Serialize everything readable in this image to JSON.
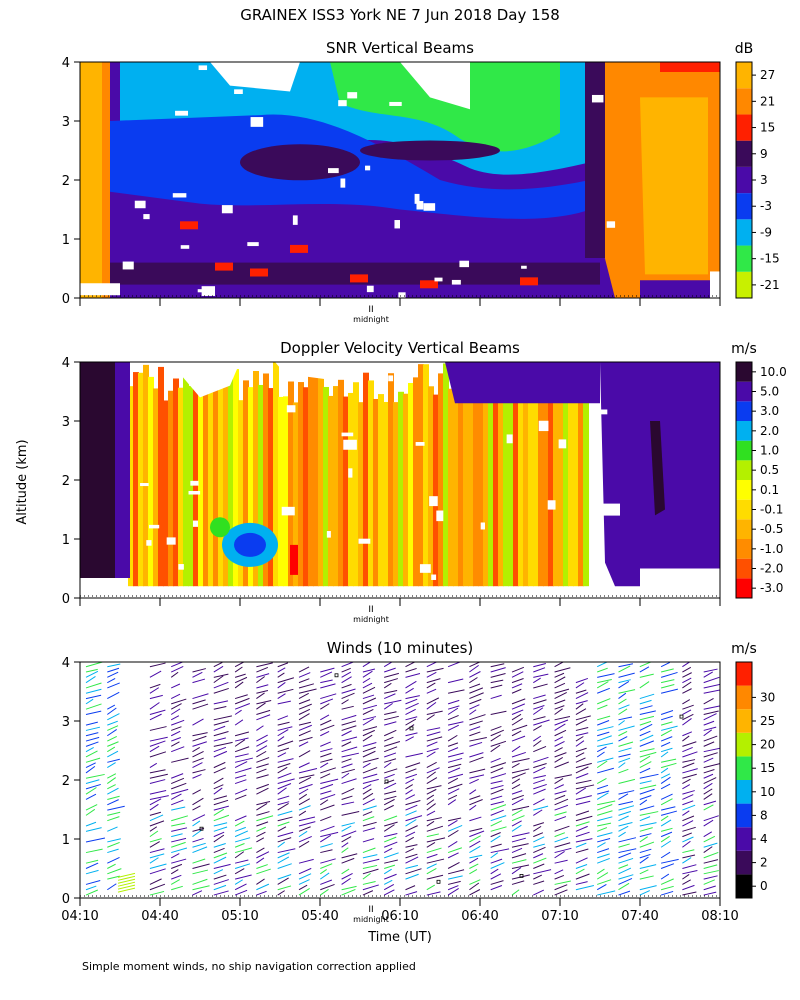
{
  "title": "GRAINEX ISS3 York NE   7 Jun 2018 Day 158",
  "ylabel_shared": "Altitude (km)",
  "footnote": "Simple moment winds, no ship navigation correction applied",
  "marker_label": "midnight",
  "marker_symbol": "II",
  "chart_data": [
    {
      "type": "heatmap",
      "title": "SNR Vertical Beams",
      "ylabel": "Altitude (km)",
      "ylim": [
        0,
        4
      ],
      "y_ticks": [
        0,
        1,
        2,
        3,
        4
      ],
      "x_ticks": [
        "04:10",
        "04:40",
        "05:10",
        "05:40",
        "06:10",
        "06:40",
        "07:10",
        "07:40",
        "08:10"
      ],
      "colorbar": {
        "unit": "dB",
        "levels": [
          "-21",
          "-15",
          "-9",
          "-3",
          "3",
          "9",
          "15",
          "21",
          "27"
        ],
        "colors": [
          "#c8f000",
          "#30e848",
          "#00b0f0",
          "#0a3cf0",
          "#4a0aa8",
          "#3a0a5a",
          "#ff2000",
          "#ff8800",
          "#ffb400"
        ]
      }
    },
    {
      "type": "heatmap",
      "title": "Doppler Velocity Vertical Beams",
      "ylabel": "Altitude (km)",
      "ylim": [
        0,
        4
      ],
      "y_ticks": [
        0,
        1,
        2,
        3,
        4
      ],
      "x_ticks": [
        "04:10",
        "04:40",
        "05:10",
        "05:40",
        "06:10",
        "06:40",
        "07:10",
        "07:40",
        "08:10"
      ],
      "colorbar": {
        "unit": "m/s",
        "levels": [
          "-3.0",
          "-2.0",
          "-1.0",
          "-0.5",
          "-0.1",
          "0.1",
          "0.5",
          "1.0",
          "2.0",
          "3.0",
          "5.0",
          "10.0"
        ],
        "colors": [
          "#ff0000",
          "#ff5000",
          "#ff8c00",
          "#ffb400",
          "#ffdc00",
          "#ffff00",
          "#b4f000",
          "#30e020",
          "#00b0f0",
          "#0a3cf0",
          "#4a0aa8",
          "#2a0830"
        ]
      }
    },
    {
      "type": "scatter",
      "title": "Winds (10 minutes)",
      "xlabel": "Time (UT)",
      "ylabel": "Altitude (km)",
      "ylim": [
        0,
        4
      ],
      "y_ticks": [
        0,
        1,
        2,
        3,
        4
      ],
      "x_ticks": [
        "04:10",
        "04:40",
        "05:10",
        "05:40",
        "06:10",
        "06:40",
        "07:10",
        "07:40",
        "08:10"
      ],
      "colorbar": {
        "unit": "m/s",
        "levels": [
          "0",
          "2",
          "4",
          "8",
          "10",
          "15",
          "20",
          "25",
          "30"
        ],
        "colors": [
          "#000000",
          "#3a0a5a",
          "#4a0aa8",
          "#0a3cf0",
          "#00b0f0",
          "#30e848",
          "#b4f000",
          "#ffb400",
          "#ff8800",
          "#ff2000"
        ]
      }
    }
  ]
}
